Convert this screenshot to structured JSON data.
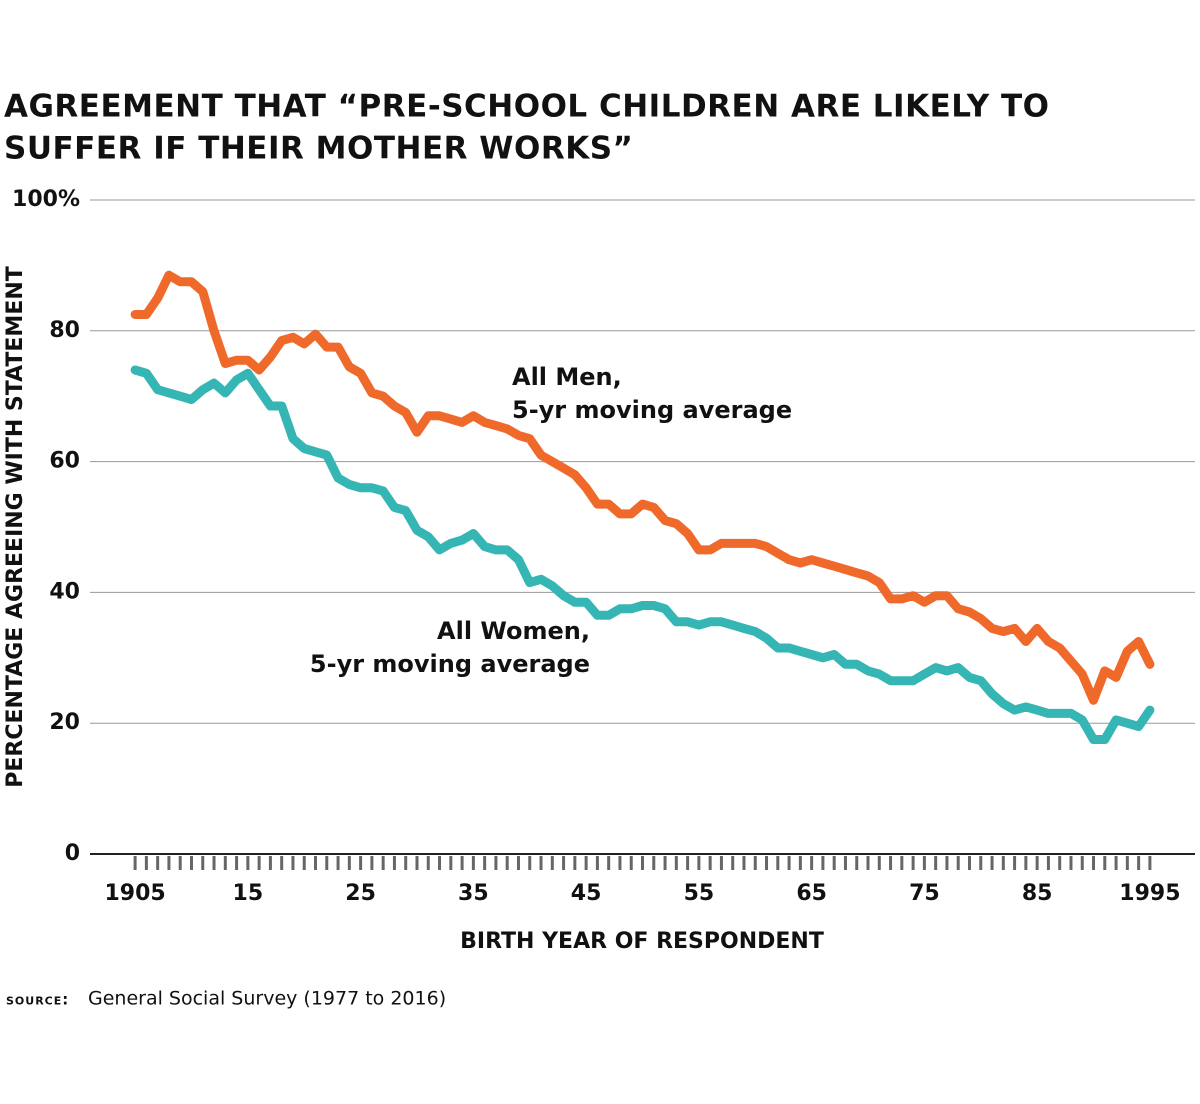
{
  "chart_data": {
    "type": "line",
    "title": [
      "AGREEMENT THAT “PRE-SCHOOL CHILDREN ARE LIKELY TO",
      "SUFFER IF THEIR MOTHER WORKS”"
    ],
    "y_label": "PERCENTAGE AGREEING WITH STATEMENT",
    "x_label": "BIRTH YEAR OF RESPONDENT",
    "source": {
      "label": "source:",
      "text": "General Social Survey (1977 to 2016)"
    },
    "x": [
      1905,
      1906,
      1907,
      1908,
      1909,
      1910,
      1911,
      1912,
      1913,
      1914,
      1915,
      1916,
      1917,
      1918,
      1919,
      1920,
      1921,
      1922,
      1923,
      1924,
      1925,
      1926,
      1927,
      1928,
      1929,
      1930,
      1931,
      1932,
      1933,
      1934,
      1935,
      1936,
      1937,
      1938,
      1939,
      1940,
      1941,
      1942,
      1943,
      1944,
      1945,
      1946,
      1947,
      1948,
      1949,
      1950,
      1951,
      1952,
      1953,
      1954,
      1955,
      1956,
      1957,
      1958,
      1959,
      1960,
      1961,
      1962,
      1963,
      1964,
      1965,
      1966,
      1967,
      1968,
      1969,
      1970,
      1971,
      1972,
      1973,
      1974,
      1975,
      1976,
      1977,
      1978,
      1979,
      1980,
      1981,
      1982,
      1983,
      1984,
      1985,
      1986,
      1987,
      1988,
      1989,
      1990,
      1991,
      1992,
      1993,
      1994,
      1995
    ],
    "series": [
      {
        "name": "All Men,",
        "note": "5-yr moving average",
        "color": "#ef6a2a",
        "values": [
          82.5,
          82.5,
          85,
          88.5,
          87.5,
          87.5,
          86,
          80,
          75,
          75.5,
          75.5,
          74,
          76,
          78.5,
          79,
          78,
          79.5,
          77.5,
          77.5,
          74.5,
          73.5,
          70.5,
          70,
          68.5,
          67.5,
          64.5,
          67,
          67,
          66.5,
          66,
          67,
          66,
          65.5,
          65,
          64,
          63.5,
          61,
          60,
          59,
          58,
          56,
          53.5,
          53.5,
          52,
          52,
          53.5,
          53,
          51,
          50.5,
          49,
          46.5,
          46.5,
          47.5,
          47.5,
          47.5,
          47.5,
          47,
          46,
          45,
          44.5,
          45,
          44.5,
          44,
          43.5,
          43,
          42.5,
          41.5,
          39,
          39,
          39.5,
          38.5,
          39.5,
          39.5,
          37.5,
          37,
          36,
          34.5,
          34,
          34.5,
          32.5,
          34.5,
          32.5,
          31.5,
          29.5,
          27.5,
          23.5,
          28,
          27,
          31,
          32.5,
          29
        ]
      },
      {
        "name": "All Women,",
        "note": "5-yr moving average",
        "color": "#35b5b3",
        "values": [
          74,
          73.5,
          71,
          70.5,
          70,
          69.5,
          71,
          72,
          70.5,
          72.5,
          73.5,
          71,
          68.5,
          68.5,
          63.5,
          62,
          61.5,
          61,
          57.5,
          56.5,
          56,
          56,
          55.5,
          53,
          52.5,
          49.5,
          48.5,
          46.5,
          47.5,
          48,
          49,
          47,
          46.5,
          46.5,
          45,
          41.5,
          42,
          41,
          39.5,
          38.5,
          38.5,
          36.5,
          36.5,
          37.5,
          37.5,
          38,
          38,
          37.5,
          35.5,
          35.5,
          35,
          35.5,
          35.5,
          35,
          34.5,
          34,
          33,
          31.5,
          31.5,
          31,
          30.5,
          30,
          30.5,
          29,
          29,
          28,
          27.5,
          26.5,
          26.5,
          26.5,
          27.5,
          28.5,
          28,
          28.5,
          27,
          26.5,
          24.5,
          23,
          22,
          22.5,
          22,
          21.5,
          21.5,
          21.5,
          20.5,
          17.5,
          17.5,
          20.5,
          20,
          19.5,
          22
        ]
      }
    ],
    "xlim": [
      1901,
      1999
    ],
    "xticks": [
      1905,
      {
        "value": 1915,
        "label": "15"
      },
      {
        "value": 1925,
        "label": "25"
      },
      {
        "value": 1935,
        "label": "35"
      },
      {
        "value": 1945,
        "label": "45"
      },
      {
        "value": 1955,
        "label": "55"
      },
      {
        "value": 1965,
        "label": "65"
      },
      {
        "value": 1975,
        "label": "75"
      },
      {
        "value": 1985,
        "label": "85"
      },
      1995
    ],
    "ylim": [
      0,
      100
    ],
    "yticks": [
      0,
      20,
      40,
      60,
      80,
      {
        "value": 100,
        "label": "100%"
      }
    ],
    "grid": true
  }
}
